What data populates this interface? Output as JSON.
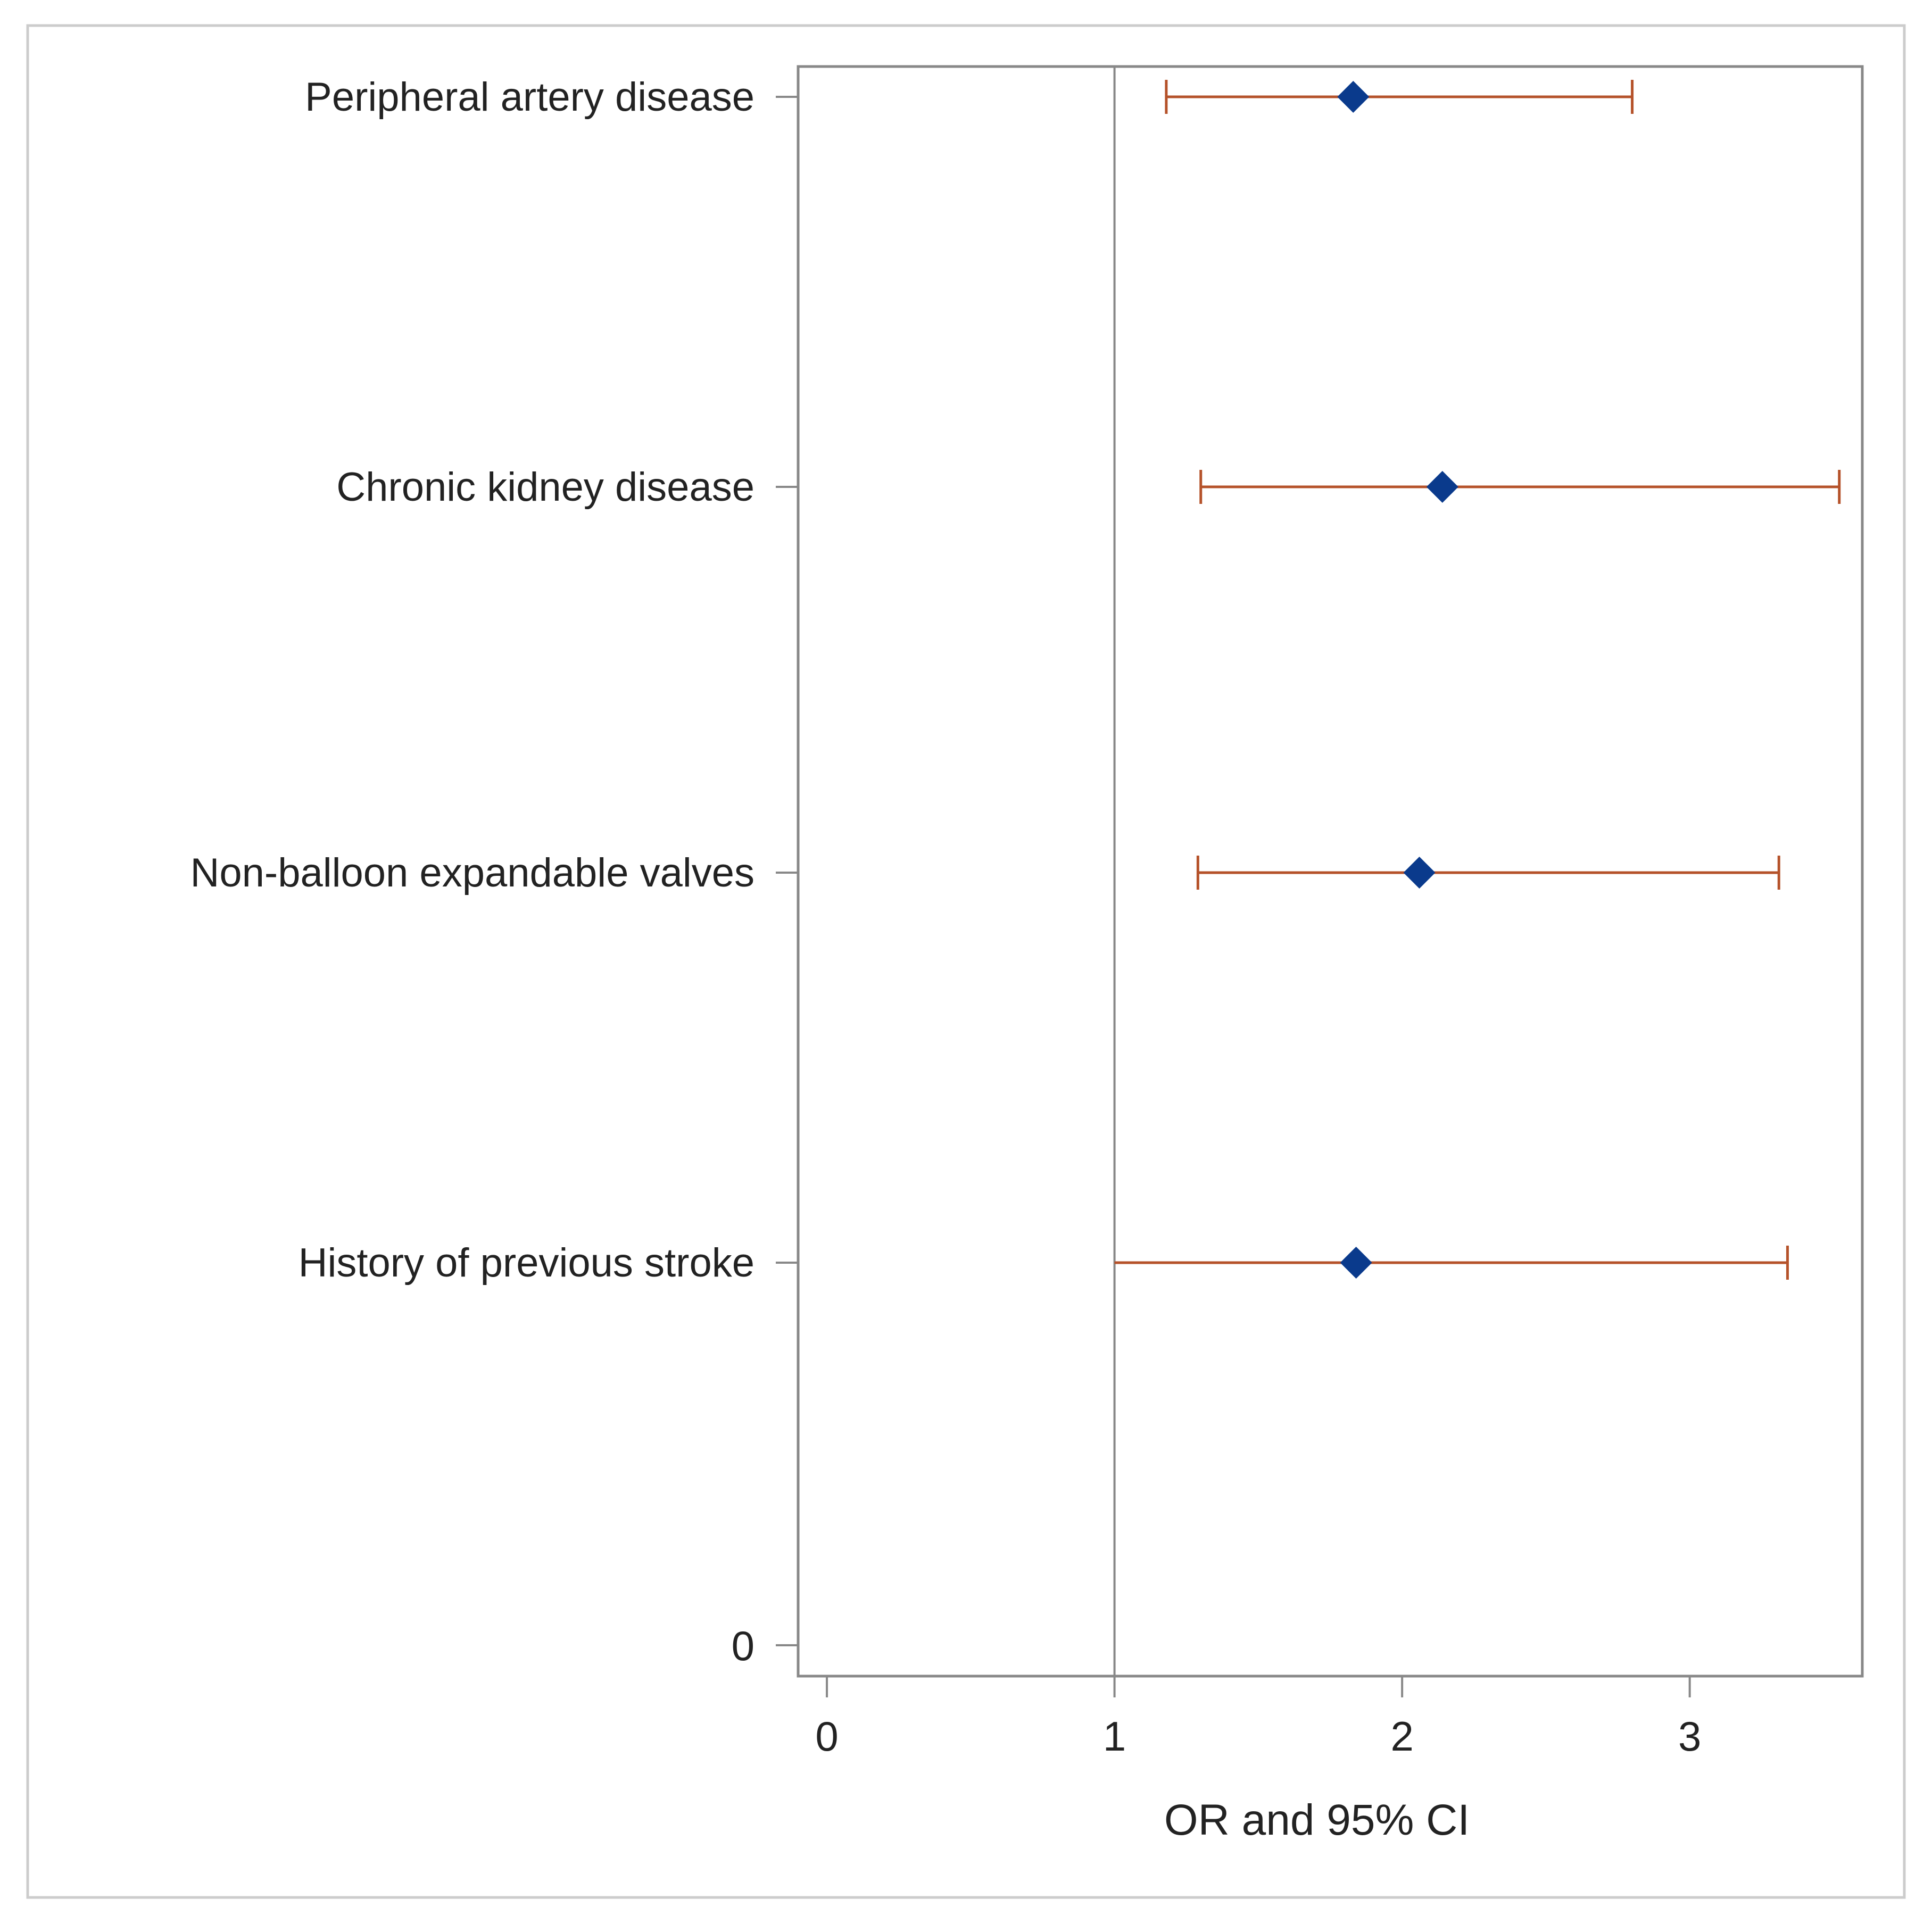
{
  "chart_data": {
    "type": "forest",
    "xlabel": "OR and 95% CI",
    "ylabel": "",
    "xlim": [
      -0.1,
      3.6
    ],
    "xticks": [
      0,
      1,
      2,
      3
    ],
    "yticks": [
      "0"
    ],
    "reference_line": 1,
    "grid": false,
    "legend": "none",
    "colors": {
      "point": "#0a3a8c",
      "interval": "#b5522a",
      "reference": "#888888",
      "frame": "#888888",
      "outer_border": "#cccccc",
      "text": "#222222"
    },
    "rows": [
      {
        "label": "Peripheral artery disease",
        "or": 1.83,
        "lower": 1.18,
        "upper": 2.8
      },
      {
        "label": "Chronic kidney disease",
        "or": 2.14,
        "lower": 1.3,
        "upper": 3.52
      },
      {
        "label": "Non-balloon expandable valves",
        "or": 2.06,
        "lower": 1.29,
        "upper": 3.31
      },
      {
        "label": "History of previous stroke",
        "or": 1.84,
        "lower": 1.0,
        "upper": 3.34
      }
    ]
  }
}
